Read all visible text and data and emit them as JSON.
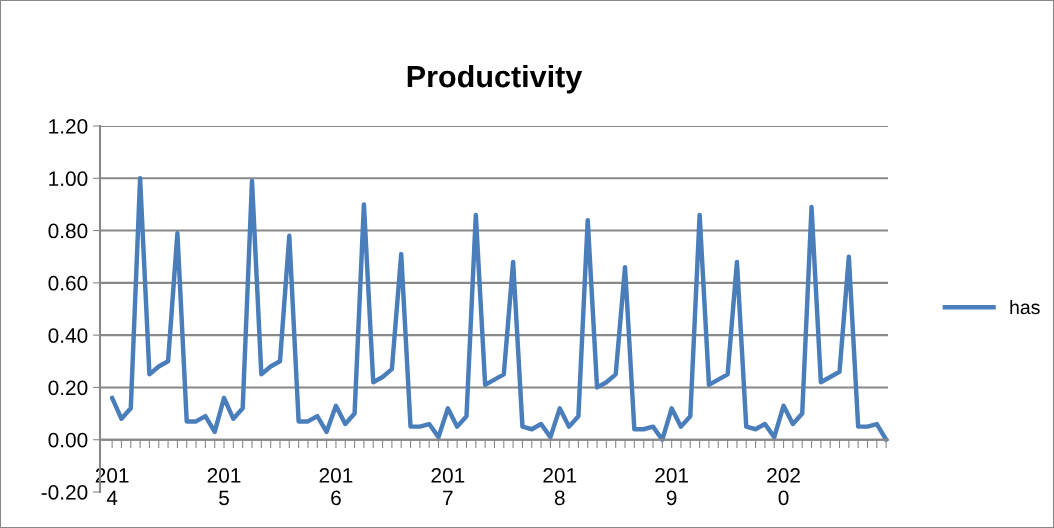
{
  "chart_data": {
    "type": "line",
    "title": "Productivity",
    "categories": [
      "201\n4",
      null,
      null,
      null,
      null,
      null,
      null,
      null,
      null,
      null,
      null,
      null,
      "201\n5",
      null,
      null,
      null,
      null,
      null,
      null,
      null,
      null,
      null,
      null,
      null,
      "201\n6",
      null,
      null,
      null,
      null,
      null,
      null,
      null,
      null,
      null,
      null,
      null,
      "201\n7",
      null,
      null,
      null,
      null,
      null,
      null,
      null,
      null,
      null,
      null,
      null,
      "201\n8",
      null,
      null,
      null,
      null,
      null,
      null,
      null,
      null,
      null,
      null,
      null,
      "201\n9",
      null,
      null,
      null,
      null,
      null,
      null,
      null,
      null,
      null,
      null,
      null,
      "202\n0",
      null,
      null,
      null,
      null,
      null,
      null,
      null,
      null,
      null,
      null,
      null
    ],
    "series": [
      {
        "name": "has",
        "color": "#4a7ebb",
        "values": [
          0.16,
          0.08,
          0.12,
          1.0,
          0.25,
          0.28,
          0.3,
          0.79,
          0.07,
          0.07,
          0.09,
          0.03,
          0.16,
          0.08,
          0.12,
          0.99,
          0.25,
          0.28,
          0.3,
          0.78,
          0.07,
          0.07,
          0.09,
          0.03,
          0.13,
          0.06,
          0.1,
          0.9,
          0.22,
          0.24,
          0.27,
          0.71,
          0.05,
          0.05,
          0.06,
          0.01,
          0.12,
          0.05,
          0.09,
          0.86,
          0.21,
          0.23,
          0.25,
          0.68,
          0.05,
          0.04,
          0.06,
          0.01,
          0.12,
          0.05,
          0.09,
          0.84,
          0.2,
          0.22,
          0.25,
          0.66,
          0.04,
          0.04,
          0.05,
          0.0,
          0.12,
          0.05,
          0.09,
          0.86,
          0.21,
          0.23,
          0.25,
          0.68,
          0.05,
          0.04,
          0.06,
          0.01,
          0.13,
          0.06,
          0.1,
          0.89,
          0.22,
          0.24,
          0.26,
          0.7,
          0.05,
          0.05,
          0.06,
          0.0
        ]
      }
    ],
    "ylim": [
      -0.2,
      1.2
    ],
    "yticks": [
      {
        "value": -0.2,
        "label": "-0.20"
      },
      {
        "value": 0,
        "label": "0.00"
      },
      {
        "value": 0.2,
        "label": "0.20"
      },
      {
        "value": 0.4,
        "label": "0.40"
      },
      {
        "value": 0.6,
        "label": "0.60"
      },
      {
        "value": 0.8,
        "label": "0.80"
      },
      {
        "value": 1.0,
        "label": "1.00"
      },
      {
        "value": 1.2,
        "label": "1.20"
      }
    ],
    "grid": "y",
    "legend": "right",
    "marker": "none",
    "line_style": "solid"
  }
}
